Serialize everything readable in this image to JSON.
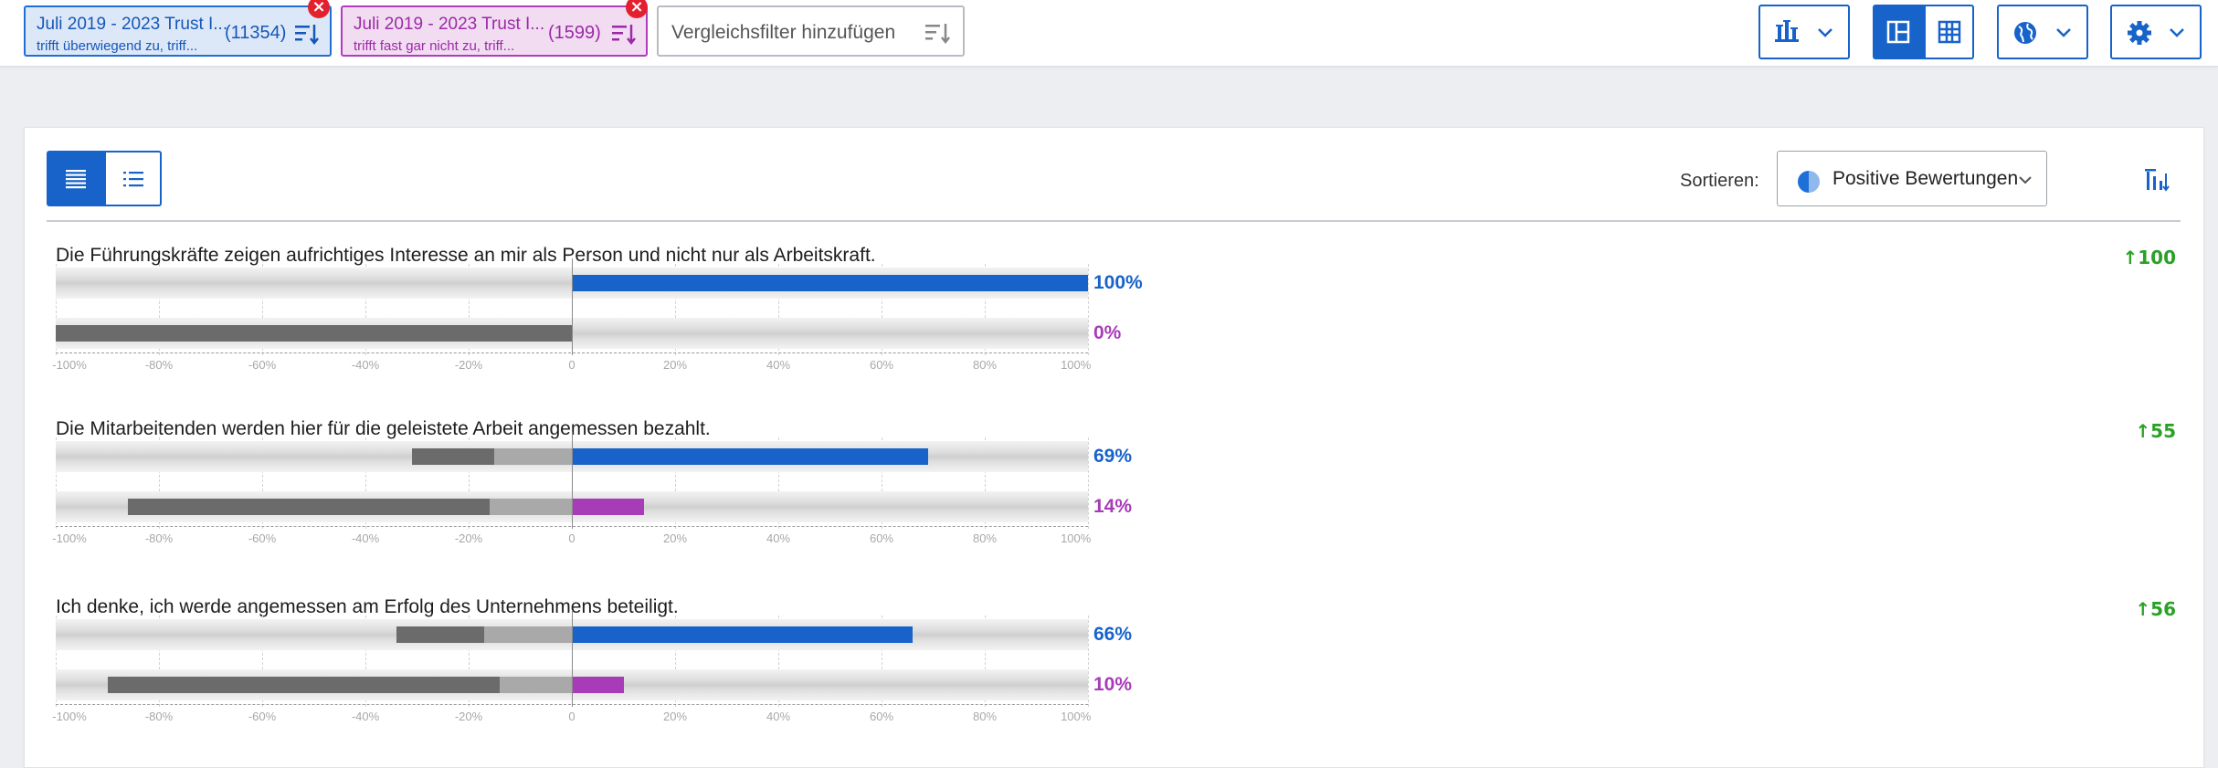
{
  "filters": [
    {
      "title": "Juli 2019 - 2023 Trust I...",
      "subtitle": "trifft überwiegend zu, triff...",
      "count": "(11354)",
      "color": "#1763c9"
    },
    {
      "title": "Juli 2019 - 2023 Trust I...",
      "subtitle": "trifft fast gar nicht zu, triff...",
      "count": "(1599)",
      "color": "#a73bb8"
    }
  ],
  "add_filter_label": "Vergleichsfilter hinzufügen",
  "toolbar_icons": [
    "chart-type-icon",
    "layout-split-icon",
    "layout-grid-icon",
    "globe-icon",
    "settings-gear-icon"
  ],
  "sort": {
    "label": "Sortieren:",
    "value": "Positive Bewertungen"
  },
  "axis_ticks": [
    "-100%",
    "-80%",
    "-60%",
    "-40%",
    "-20%",
    "0",
    "20%",
    "40%",
    "60%",
    "80%",
    "100%"
  ],
  "chart_data": {
    "type": "bar",
    "orientation": "diverging-horizontal",
    "xlim": [
      -100,
      100
    ],
    "series": [
      {
        "color": "#1763c9"
      },
      {
        "color": "#a73bb8"
      }
    ],
    "questions": [
      {
        "text": "Die Führungskräfte zeigen aufrichtiges Interesse an mir als Person und nicht nur als Arbeitskraft.",
        "score": "100",
        "rows": [
          {
            "positive": 100,
            "neutral": 0,
            "negative": 0,
            "label": "100%"
          },
          {
            "positive": 0,
            "neutral": 0,
            "negative": 100,
            "label": "0%"
          }
        ]
      },
      {
        "text": "Die Mitarbeitenden werden hier für die geleistete Arbeit angemessen bezahlt.",
        "score": "55",
        "rows": [
          {
            "positive": 69,
            "neutral": 15,
            "negative": 16,
            "label": "69%"
          },
          {
            "positive": 14,
            "neutral": 16,
            "negative": 70,
            "label": "14%"
          }
        ]
      },
      {
        "text": "Ich denke, ich werde angemessen am Erfolg des Unternehmens beteiligt.",
        "score": "56",
        "rows": [
          {
            "positive": 66,
            "neutral": 17,
            "negative": 17,
            "label": "66%"
          },
          {
            "positive": 10,
            "neutral": 14,
            "negative": 76,
            "label": "10%"
          }
        ]
      }
    ]
  }
}
